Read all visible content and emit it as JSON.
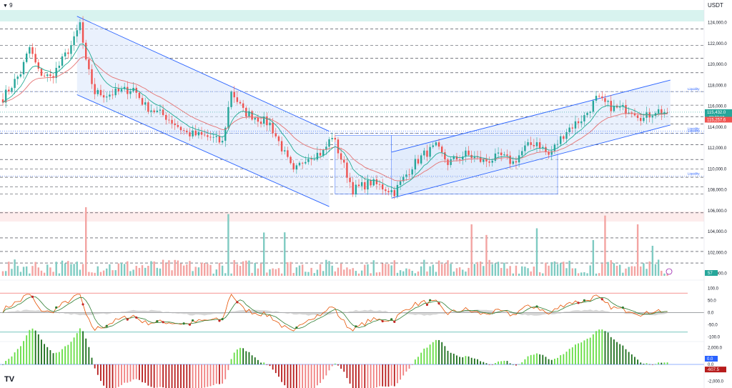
{
  "header": {
    "interval": "9",
    "currency": "USDT",
    "toggle_icon": "chevron-down-icon"
  },
  "colors": {
    "up": "#26a69a",
    "down": "#ef5350",
    "channel": "#2962ff",
    "channel_fill": "#dce7fb",
    "band": "#d8f3ef",
    "ema_fast": "#e57373",
    "ema_slow": "#22ab94",
    "liq_line": "#2962ff",
    "osc_k": "#e65100",
    "osc_d": "#2e7d32",
    "macd_up": "#4caf50",
    "macd_down": "#c62828"
  },
  "price_axis": {
    "ticks": [
      "124,000.0",
      "122,000.0",
      "120,000.0",
      "118,000.0",
      "116,000.0",
      "114,000.0",
      "112,000.0",
      "110,000.0",
      "108,000.0",
      "106,000.0",
      "104,000.0",
      "102,000.0",
      "100,000.0"
    ],
    "current_price": "115,432.0",
    "countdown": "03:22:18",
    "ema_value": "115,257.6",
    "volume_badge": "57"
  },
  "liquidity_labels": [
    "Liquidity",
    "Liquidity",
    "Liquidity",
    "Liquidity"
  ],
  "osc_axis": {
    "ticks": [
      "100.0",
      "50.0",
      "0.0",
      "-50.0",
      "-100.0"
    ]
  },
  "macd_axis": {
    "ticks": [
      "2,000.0",
      "0.0",
      "-2,000.0"
    ],
    "value_zero": "0.0",
    "value_hist": "-607.5"
  },
  "logo": "TV",
  "chart_data": [
    {
      "type": "candlestick",
      "title": "",
      "ylim": [
        99500,
        125200
      ],
      "reference_levels": [
        123400,
        121800,
        120600,
        119200,
        117400,
        116100,
        115000,
        114300,
        113400,
        112300,
        110900,
        110000,
        109200,
        108300,
        107600,
        105800,
        103400,
        102100,
        101000
      ],
      "liquidity_levels": [
        117400,
        113600,
        113400,
        109300
      ],
      "descending_channel": {
        "start_index": 25,
        "end_index": 110,
        "upper": [
          124600,
          113600
        ],
        "lower": [
          117100,
          106400
        ]
      },
      "ascending_channel": {
        "start_index": 131,
        "end_index": 225,
        "upper": [
          111600,
          118500
        ],
        "lower": [
          107200,
          114200
        ]
      },
      "boxes": [
        {
          "start_index": 112,
          "end_index": 131,
          "top": 113200,
          "bottom": 107600
        },
        {
          "start_index": 131,
          "end_index": 187,
          "top": 113200,
          "bottom": 107600
        }
      ],
      "anchors": [
        [
          0,
          116800
        ],
        [
          6,
          119200
        ],
        [
          9,
          121600
        ],
        [
          12,
          119300
        ],
        [
          16,
          118700
        ],
        [
          19,
          119900
        ],
        [
          24,
          122300
        ],
        [
          26,
          123900
        ],
        [
          28,
          120100
        ],
        [
          31,
          117300
        ],
        [
          35,
          117100
        ],
        [
          44,
          117700
        ],
        [
          48,
          116000
        ],
        [
          55,
          115000
        ],
        [
          62,
          113400
        ],
        [
          70,
          113000
        ],
        [
          74,
          112500
        ],
        [
          77,
          117500
        ],
        [
          81,
          115500
        ],
        [
          90,
          114300
        ],
        [
          94,
          112000
        ],
        [
          98,
          109600
        ],
        [
          102,
          111100
        ],
        [
          108,
          111600
        ],
        [
          111,
          113200
        ],
        [
          114,
          111000
        ],
        [
          118,
          108000
        ],
        [
          124,
          108700
        ],
        [
          132,
          107800
        ],
        [
          138,
          110300
        ],
        [
          142,
          111400
        ],
        [
          146,
          112100
        ],
        [
          150,
          110600
        ],
        [
          156,
          111400
        ],
        [
          162,
          110700
        ],
        [
          168,
          111200
        ],
        [
          172,
          110600
        ],
        [
          176,
          112000
        ],
        [
          180,
          112600
        ],
        [
          184,
          111300
        ],
        [
          190,
          113700
        ],
        [
          196,
          115000
        ],
        [
          200,
          116700
        ],
        [
          206,
          115800
        ],
        [
          212,
          115700
        ],
        [
          216,
          114800
        ],
        [
          220,
          115600
        ],
        [
          224,
          115400
        ]
      ],
      "current_price": 115432,
      "ema": 115257.6
    },
    {
      "type": "bar",
      "title": "",
      "label": "volume",
      "last_value": 57,
      "spike_indices": [
        28,
        76,
        88,
        95,
        158,
        163,
        180,
        199,
        203,
        214,
        219
      ]
    },
    {
      "type": "line",
      "title": "",
      "label": "oscillator",
      "ylim": [
        -110,
        110
      ],
      "levels": [
        80,
        50,
        0,
        -50
      ],
      "ticks": [
        100,
        50,
        0,
        -50,
        -100
      ]
    },
    {
      "type": "bar",
      "title": "",
      "label": "macd histogram",
      "ylim": [
        -2400,
        2400
      ],
      "ticks": [
        2000,
        0,
        -2000
      ],
      "last_value": -607.5
    }
  ]
}
